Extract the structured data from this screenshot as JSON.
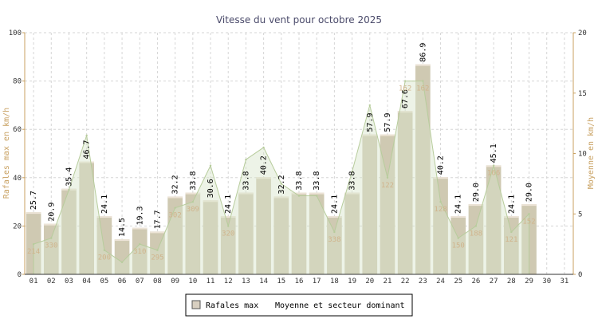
{
  "chart_data": {
    "type": "bar",
    "title": "Vitesse du vent pour octobre 2025",
    "ylabel": "Rafales max en km/h",
    "y2label": "Moyenne en km/h",
    "ylim": [
      0,
      100
    ],
    "y2lim": [
      0,
      20
    ],
    "yticks": [
      "0",
      "20",
      "40",
      "60",
      "80",
      "100"
    ],
    "y2ticks": [
      "0",
      "5",
      "10",
      "15",
      "20"
    ],
    "grid": true,
    "legend_position": "bottom-center",
    "categories": [
      "01",
      "02",
      "03",
      "04",
      "05",
      "06",
      "07",
      "08",
      "09",
      "10",
      "11",
      "12",
      "13",
      "14",
      "15",
      "16",
      "17",
      "18",
      "19",
      "20",
      "21",
      "22",
      "23",
      "24",
      "25",
      "26",
      "27",
      "28",
      "29",
      "30",
      "31"
    ],
    "series": [
      {
        "name": "Rafales max",
        "type": "bar",
        "values": [
          25.7,
          20.9,
          35.4,
          46.7,
          24.1,
          14.5,
          19.3,
          17.7,
          32.2,
          33.8,
          30.6,
          24.1,
          33.8,
          40.2,
          32.2,
          33.8,
          33.8,
          24.1,
          33.8,
          57.9,
          57.9,
          67.6,
          86.9,
          40.2,
          24.1,
          29.0,
          45.1,
          24.1,
          29.0,
          null,
          null
        ],
        "labels": [
          "25.7",
          "20.9",
          "35.4",
          "46.7",
          "24.1",
          "14.5",
          "19.3",
          "17.7",
          "32.2",
          "33.8",
          "30.6",
          "24.1",
          "33.8",
          "40.2",
          "32.2",
          "33.8",
          "33.8",
          "24.1",
          "33.8",
          "57.9",
          "57.9",
          "67.6",
          "86.9",
          "40.2",
          "24.1",
          "29.0",
          "45.1",
          "24.1",
          "29.0",
          "",
          ""
        ]
      },
      {
        "name": "Moyenne et secteur dominant",
        "type": "area",
        "axis": "right",
        "values": [
          2.5,
          3.0,
          7.0,
          11.5,
          2.0,
          1.0,
          2.5,
          2.0,
          5.5,
          6.0,
          9.0,
          4.0,
          9.5,
          10.5,
          7.5,
          6.5,
          6.5,
          3.5,
          8.5,
          14.0,
          8.0,
          16.0,
          16.0,
          6.0,
          3.0,
          4.0,
          9.0,
          3.5,
          5.0,
          null,
          null
        ]
      }
    ],
    "direction_labels": [
      "214",
      "330",
      "",
      "",
      "200",
      "",
      "310",
      "295",
      "302",
      "309",
      "",
      "320",
      "",
      "",
      "",
      "",
      "",
      "338",
      "",
      "",
      "122",
      "162",
      "162",
      "128",
      "150",
      "188",
      "166",
      "121",
      "152",
      "",
      ""
    ]
  },
  "legend": {
    "items": [
      {
        "label": "Rafales max",
        "color": "#d8cfc0"
      },
      {
        "label": "Moyenne et secteur dominant",
        "color": "#ffffff"
      }
    ]
  },
  "colors": {
    "bar_fill": "#cfc9b2",
    "bar_highlight": "#ece3d6",
    "area_fill": "#d8e4c9",
    "area_stroke": "#b7cc9c",
    "axis_label": "#c8a060",
    "grid": "#d6d6d6",
    "frame": "#c8a060"
  }
}
